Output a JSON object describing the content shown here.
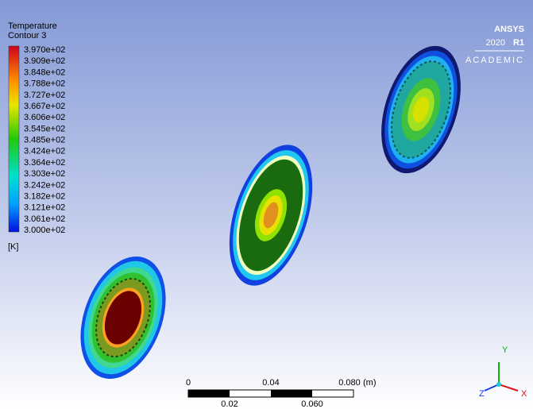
{
  "legend": {
    "title": "Temperature",
    "subtitle": "Contour 3",
    "labels": [
      "3.970e+02",
      "3.909e+02",
      "3.848e+02",
      "3.788e+02",
      "3.727e+02",
      "3.667e+02",
      "3.606e+02",
      "3.545e+02",
      "3.485e+02",
      "3.424e+02",
      "3.364e+02",
      "3.303e+02",
      "3.242e+02",
      "3.182e+02",
      "3.121e+02",
      "3.061e+02",
      "3.000e+02"
    ],
    "unit": "[K]"
  },
  "logo": {
    "name": "ANSYS",
    "version": "2020",
    "release": "R1",
    "edition": "ACADEMIC"
  },
  "scale_bar": {
    "top_labels": [
      "0",
      "0.04",
      "0.080"
    ],
    "unit": "(m)",
    "bottom_labels": [
      "0.02",
      "0.060"
    ]
  },
  "axes": {
    "y": "Y",
    "x": "X",
    "z": "Z"
  }
}
